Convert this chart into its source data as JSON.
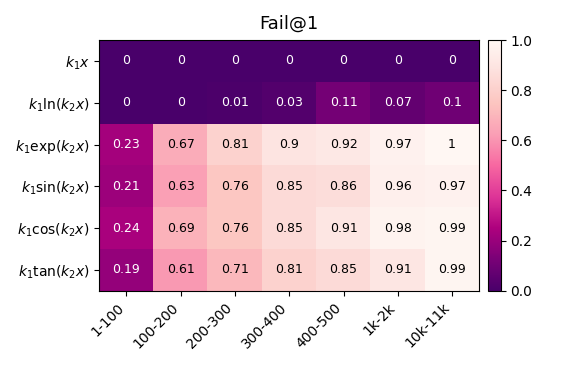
{
  "title": "Fail@1",
  "yticklabels": [
    "$k_1x$",
    "$k_1\\ln(k_2x)$",
    "$k_1\\exp(k_2x)$",
    "$k_1\\sin(k_2x)$",
    "$k_1\\cos(k_2x)$",
    "$k_1\\tan(k_2x)$"
  ],
  "xticklabels": [
    "1-100",
    "100-200",
    "200-300",
    "300-400",
    "400-500",
    "1k-2k",
    "10k-11k"
  ],
  "data": [
    [
      0,
      0,
      0,
      0,
      0,
      0,
      0
    ],
    [
      0,
      0,
      0.01,
      0.03,
      0.11,
      0.07,
      0.1
    ],
    [
      0.23,
      0.67,
      0.81,
      0.9,
      0.92,
      0.97,
      1.0
    ],
    [
      0.21,
      0.63,
      0.76,
      0.85,
      0.86,
      0.96,
      0.97
    ],
    [
      0.24,
      0.69,
      0.76,
      0.85,
      0.91,
      0.98,
      0.99
    ],
    [
      0.19,
      0.61,
      0.71,
      0.81,
      0.85,
      0.91,
      0.99
    ]
  ],
  "annot_labels": [
    [
      "0",
      "0",
      "0",
      "0",
      "0",
      "0",
      "0"
    ],
    [
      "0",
      "0",
      "0.01",
      "0.03",
      "0.11",
      "0.07",
      "0.1"
    ],
    [
      "0.23",
      "0.67",
      "0.81",
      "0.9",
      "0.92",
      "0.97",
      "1"
    ],
    [
      "0.21",
      "0.63",
      "0.76",
      "0.85",
      "0.86",
      "0.96",
      "0.97"
    ],
    [
      "0.24",
      "0.69",
      "0.76",
      "0.85",
      "0.91",
      "0.98",
      "0.99"
    ],
    [
      "0.19",
      "0.61",
      "0.71",
      "0.81",
      "0.85",
      "0.91",
      "0.99"
    ]
  ],
  "vmin": 0.0,
  "vmax": 1.0,
  "cmap": "RdPu_r",
  "title_fontsize": 13,
  "tick_fontsize": 10,
  "annot_fontsize": 9,
  "white_threshold": 0.45
}
